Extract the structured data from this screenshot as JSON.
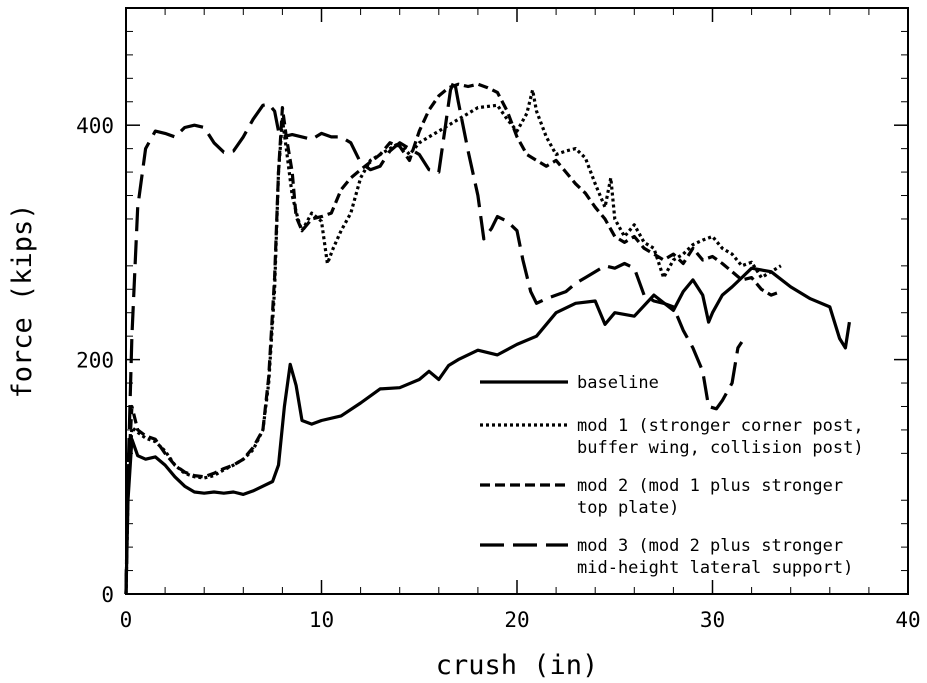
{
  "chart_data": {
    "type": "line",
    "xlabel": "crush (in)",
    "ylabel": "force (kips)",
    "xlim": [
      0,
      40
    ],
    "ylim": [
      0,
      500
    ],
    "x_ticks": [
      0,
      10,
      20,
      30,
      40
    ],
    "x_tick_labels": [
      "0",
      "10",
      "20",
      "30",
      "40"
    ],
    "y_ticks": [
      0,
      200,
      400
    ],
    "y_tick_labels": [
      "0",
      "200",
      "400"
    ],
    "grid": false,
    "legend_position": "bottom-right",
    "series": [
      {
        "name": "baseline",
        "style": "solid",
        "points": [
          [
            0,
            0
          ],
          [
            0.1,
            80
          ],
          [
            0.3,
            132
          ],
          [
            0.6,
            118
          ],
          [
            1,
            115
          ],
          [
            1.5,
            117
          ],
          [
            2,
            110
          ],
          [
            2.5,
            100
          ],
          [
            3,
            92
          ],
          [
            3.5,
            87
          ],
          [
            4,
            86
          ],
          [
            4.5,
            87
          ],
          [
            5,
            86
          ],
          [
            5.5,
            87
          ],
          [
            6,
            85
          ],
          [
            6.5,
            88
          ],
          [
            7,
            92
          ],
          [
            7.5,
            96
          ],
          [
            7.8,
            110
          ],
          [
            8.1,
            160
          ],
          [
            8.4,
            196
          ],
          [
            8.7,
            178
          ],
          [
            9,
            148
          ],
          [
            9.5,
            145
          ],
          [
            10,
            148
          ],
          [
            11,
            152
          ],
          [
            12,
            163
          ],
          [
            13,
            175
          ],
          [
            14,
            176
          ],
          [
            15,
            183
          ],
          [
            15.5,
            190
          ],
          [
            16,
            183
          ],
          [
            16.5,
            195
          ],
          [
            17,
            200
          ],
          [
            18,
            208
          ],
          [
            19,
            204
          ],
          [
            20,
            213
          ],
          [
            21,
            220
          ],
          [
            22,
            240
          ],
          [
            23,
            248
          ],
          [
            24,
            250
          ],
          [
            24.5,
            230
          ],
          [
            25,
            240
          ],
          [
            26,
            237
          ],
          [
            27,
            255
          ],
          [
            28,
            242
          ],
          [
            28.5,
            258
          ],
          [
            29,
            268
          ],
          [
            29.5,
            255
          ],
          [
            29.8,
            232
          ],
          [
            30,
            240
          ],
          [
            30.5,
            255
          ],
          [
            31,
            262
          ],
          [
            31.5,
            270
          ],
          [
            32,
            278
          ],
          [
            33,
            275
          ],
          [
            34,
            262
          ],
          [
            35,
            252
          ],
          [
            36,
            245
          ],
          [
            36.5,
            218
          ],
          [
            36.8,
            210
          ],
          [
            37,
            232
          ]
        ]
      },
      {
        "name": "mod 1 (stronger corner post, buffer wing, collision post)",
        "style": "dotted",
        "points": [
          [
            0,
            0
          ],
          [
            0.1,
            85
          ],
          [
            0.3,
            142
          ],
          [
            0.6,
            138
          ],
          [
            1,
            133
          ],
          [
            1.5,
            130
          ],
          [
            2,
            122
          ],
          [
            2.5,
            110
          ],
          [
            3,
            103
          ],
          [
            3.5,
            100
          ],
          [
            4,
            99
          ],
          [
            4.5,
            101
          ],
          [
            5,
            106
          ],
          [
            5.5,
            110
          ],
          [
            6,
            115
          ],
          [
            6.5,
            123
          ],
          [
            7,
            140
          ],
          [
            7.3,
            180
          ],
          [
            7.6,
            260
          ],
          [
            7.8,
            360
          ],
          [
            8,
            405
          ],
          [
            8.2,
            380
          ],
          [
            8.5,
            340
          ],
          [
            8.8,
            320
          ],
          [
            9,
            310
          ],
          [
            9.5,
            325
          ],
          [
            10,
            318
          ],
          [
            10.3,
            282
          ],
          [
            10.6,
            295
          ],
          [
            11,
            310
          ],
          [
            11.5,
            325
          ],
          [
            12,
            355
          ],
          [
            12.5,
            370
          ],
          [
            13,
            375
          ],
          [
            13.5,
            380
          ],
          [
            14,
            385
          ],
          [
            14.5,
            375
          ],
          [
            15,
            385
          ],
          [
            15.5,
            390
          ],
          [
            16,
            395
          ],
          [
            16.5,
            400
          ],
          [
            17,
            405
          ],
          [
            17.5,
            410
          ],
          [
            18,
            415
          ],
          [
            19,
            417
          ],
          [
            19.5,
            405
          ],
          [
            20,
            395
          ],
          [
            20.5,
            410
          ],
          [
            20.8,
            430
          ],
          [
            21,
            412
          ],
          [
            21.5,
            390
          ],
          [
            22,
            375
          ],
          [
            22.5,
            378
          ],
          [
            23,
            380
          ],
          [
            23.5,
            372
          ],
          [
            24,
            350
          ],
          [
            24.5,
            330
          ],
          [
            24.8,
            355
          ],
          [
            25,
            320
          ],
          [
            25.5,
            305
          ],
          [
            26,
            315
          ],
          [
            26.5,
            300
          ],
          [
            27,
            295
          ],
          [
            27.5,
            270
          ],
          [
            28,
            285
          ],
          [
            28.5,
            290
          ],
          [
            29,
            298
          ],
          [
            29.5,
            302
          ],
          [
            30,
            305
          ],
          [
            30.5,
            295
          ],
          [
            31,
            290
          ],
          [
            31.5,
            280
          ],
          [
            32,
            283
          ],
          [
            32.5,
            270
          ],
          [
            33,
            275
          ],
          [
            33.5,
            280
          ]
        ]
      },
      {
        "name": "mod 2 (mod 1 plus stronger top plate)",
        "style": "dashed",
        "points": [
          [
            0,
            0
          ],
          [
            0.1,
            100
          ],
          [
            0.3,
            160
          ],
          [
            0.6,
            140
          ],
          [
            1,
            135
          ],
          [
            1.5,
            132
          ],
          [
            2,
            120
          ],
          [
            2.5,
            110
          ],
          [
            3,
            104
          ],
          [
            3.5,
            101
          ],
          [
            4,
            100
          ],
          [
            4.5,
            103
          ],
          [
            5,
            107
          ],
          [
            5.5,
            110
          ],
          [
            6,
            115
          ],
          [
            6.5,
            125
          ],
          [
            7,
            140
          ],
          [
            7.3,
            185
          ],
          [
            7.6,
            270
          ],
          [
            7.8,
            360
          ],
          [
            8,
            415
          ],
          [
            8.2,
            390
          ],
          [
            8.5,
            360
          ],
          [
            8.7,
            322
          ],
          [
            9,
            310
          ],
          [
            9.5,
            320
          ],
          [
            10,
            322
          ],
          [
            10.5,
            325
          ],
          [
            11,
            345
          ],
          [
            11.5,
            355
          ],
          [
            12,
            362
          ],
          [
            13,
            375
          ],
          [
            13.5,
            385
          ],
          [
            14,
            382
          ],
          [
            14.5,
            370
          ],
          [
            15,
            395
          ],
          [
            15.5,
            413
          ],
          [
            16,
            425
          ],
          [
            16.5,
            432
          ],
          [
            17,
            435
          ],
          [
            17.5,
            433
          ],
          [
            18,
            435
          ],
          [
            18.5,
            432
          ],
          [
            19,
            428
          ],
          [
            19.5,
            412
          ],
          [
            20,
            390
          ],
          [
            20.5,
            375
          ],
          [
            21,
            370
          ],
          [
            21.5,
            365
          ],
          [
            22,
            370
          ],
          [
            22.5,
            360
          ],
          [
            23,
            350
          ],
          [
            23.5,
            342
          ],
          [
            24,
            330
          ],
          [
            24.5,
            320
          ],
          [
            25,
            305
          ],
          [
            25.5,
            300
          ],
          [
            26,
            305
          ],
          [
            26.5,
            295
          ],
          [
            27,
            290
          ],
          [
            27.5,
            285
          ],
          [
            28,
            290
          ],
          [
            28.5,
            282
          ],
          [
            29,
            295
          ],
          [
            29.5,
            285
          ],
          [
            30,
            288
          ],
          [
            30.5,
            282
          ],
          [
            31,
            275
          ],
          [
            31.5,
            268
          ],
          [
            32,
            270
          ],
          [
            32.5,
            260
          ],
          [
            33,
            255
          ],
          [
            33.5,
            258
          ]
        ]
      },
      {
        "name": "mod 3 (mod 2 plus stronger mid-height lateral support)",
        "style": "long-dash",
        "points": [
          [
            0,
            0
          ],
          [
            0.1,
            100
          ],
          [
            0.3,
            220
          ],
          [
            0.6,
            330
          ],
          [
            1,
            380
          ],
          [
            1.5,
            395
          ],
          [
            2,
            393
          ],
          [
            2.5,
            390
          ],
          [
            3,
            398
          ],
          [
            3.5,
            400
          ],
          [
            4,
            398
          ],
          [
            4.5,
            385
          ],
          [
            5,
            377
          ],
          [
            5.5,
            378
          ],
          [
            6,
            390
          ],
          [
            6.5,
            405
          ],
          [
            7,
            417
          ],
          [
            7.3,
            418
          ],
          [
            7.6,
            412
          ],
          [
            7.8,
            395
          ],
          [
            8,
            390
          ],
          [
            8.5,
            392
          ],
          [
            9,
            390
          ],
          [
            9.5,
            388
          ],
          [
            10,
            393
          ],
          [
            10.5,
            390
          ],
          [
            11,
            390
          ],
          [
            11.5,
            385
          ],
          [
            12,
            368
          ],
          [
            12.5,
            362
          ],
          [
            13,
            365
          ],
          [
            13.5,
            378
          ],
          [
            14,
            385
          ],
          [
            14.5,
            380
          ],
          [
            15,
            375
          ],
          [
            15.5,
            362
          ],
          [
            16,
            360
          ],
          [
            16.3,
            395
          ],
          [
            16.6,
            430
          ],
          [
            16.8,
            438
          ],
          [
            17,
            420
          ],
          [
            17.5,
            378
          ],
          [
            18,
            340
          ],
          [
            18.3,
            303
          ],
          [
            18.7,
            312
          ],
          [
            19,
            322
          ],
          [
            19.5,
            318
          ],
          [
            20,
            310
          ],
          [
            20.3,
            285
          ],
          [
            20.7,
            258
          ],
          [
            21,
            248
          ],
          [
            21.5,
            252
          ],
          [
            22,
            255
          ],
          [
            22.5,
            258
          ],
          [
            23,
            265
          ],
          [
            23.5,
            270
          ],
          [
            24,
            275
          ],
          [
            24.5,
            280
          ],
          [
            25,
            278
          ],
          [
            25.5,
            282
          ],
          [
            26,
            278
          ],
          [
            26.5,
            255
          ],
          [
            27,
            250
          ],
          [
            27.5,
            248
          ],
          [
            28,
            245
          ],
          [
            28.5,
            225
          ],
          [
            29,
            210
          ],
          [
            29.5,
            190
          ],
          [
            29.8,
            160
          ],
          [
            30.2,
            158
          ],
          [
            30.5,
            165
          ],
          [
            31,
            180
          ],
          [
            31.3,
            210
          ],
          [
            31.5,
            215
          ]
        ]
      }
    ]
  },
  "legend": [
    {
      "lines": [
        "baseline"
      ],
      "style": "solid"
    },
    {
      "lines": [
        "mod 1 (stronger corner post,",
        "buffer wing, collision post)"
      ],
      "style": "dotted"
    },
    {
      "lines": [
        "mod 2 (mod 1 plus stronger",
        "top plate)"
      ],
      "style": "dashed"
    },
    {
      "lines": [
        "mod 3 (mod 2 plus stronger",
        "mid-height lateral support)"
      ],
      "style": "long-dash"
    }
  ],
  "colors": {
    "line": "#000000",
    "background": "#ffffff"
  }
}
